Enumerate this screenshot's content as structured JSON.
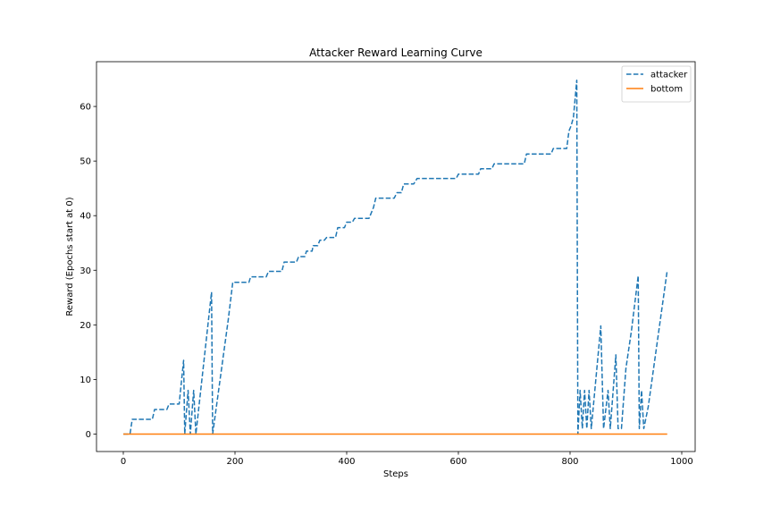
{
  "chart_data": {
    "type": "line",
    "title": "Attacker Reward Learning Curve",
    "xlabel": "Steps",
    "ylabel": "Reward (Epochs start at 0)",
    "xlim": [
      -48,
      1024
    ],
    "ylim": [
      -3.2,
      68.2
    ],
    "xticks": [
      0,
      200,
      400,
      600,
      800,
      1000
    ],
    "yticks": [
      0,
      10,
      20,
      30,
      40,
      50,
      60
    ],
    "grid": false,
    "legend": "top-right",
    "series": [
      {
        "name": "attacker",
        "color": "#1f77b4",
        "style": "dashed",
        "points": [
          [
            0,
            0
          ],
          [
            12,
            0
          ],
          [
            16,
            2.7
          ],
          [
            52,
            2.7
          ],
          [
            56,
            4.5
          ],
          [
            78,
            4.5
          ],
          [
            82,
            5.5
          ],
          [
            100,
            5.5
          ],
          [
            108,
            13.5
          ],
          [
            110,
            0
          ],
          [
            116,
            8
          ],
          [
            120,
            0
          ],
          [
            126,
            8
          ],
          [
            130,
            0
          ],
          [
            158,
            26
          ],
          [
            160,
            0
          ],
          [
            188,
            21
          ],
          [
            196,
            27.8
          ],
          [
            225,
            27.8
          ],
          [
            228,
            28.8
          ],
          [
            256,
            28.8
          ],
          [
            260,
            29.8
          ],
          [
            284,
            29.8
          ],
          [
            288,
            31.5
          ],
          [
            310,
            31.5
          ],
          [
            314,
            32.5
          ],
          [
            325,
            32.5
          ],
          [
            328,
            33.5
          ],
          [
            338,
            33.5
          ],
          [
            340,
            34.5
          ],
          [
            348,
            34.5
          ],
          [
            352,
            35.5
          ],
          [
            360,
            35.5
          ],
          [
            364,
            36
          ],
          [
            380,
            36
          ],
          [
            384,
            37.8
          ],
          [
            396,
            37.8
          ],
          [
            400,
            38.8
          ],
          [
            410,
            38.8
          ],
          [
            414,
            39.5
          ],
          [
            440,
            39.5
          ],
          [
            448,
            41.5
          ],
          [
            452,
            43.2
          ],
          [
            485,
            43.2
          ],
          [
            490,
            44.2
          ],
          [
            498,
            44.2
          ],
          [
            502,
            45.8
          ],
          [
            520,
            45.8
          ],
          [
            526,
            46.8
          ],
          [
            596,
            46.8
          ],
          [
            600,
            47.6
          ],
          [
            636,
            47.6
          ],
          [
            640,
            48.6
          ],
          [
            660,
            48.6
          ],
          [
            664,
            49.5
          ],
          [
            718,
            49.5
          ],
          [
            722,
            51.3
          ],
          [
            766,
            51.3
          ],
          [
            770,
            52.3
          ],
          [
            794,
            52.3
          ],
          [
            798,
            55.5
          ],
          [
            802,
            56.5
          ],
          [
            806,
            58
          ],
          [
            812,
            64.8
          ],
          [
            814,
            0
          ],
          [
            818,
            8
          ],
          [
            822,
            1
          ],
          [
            826,
            8
          ],
          [
            830,
            1
          ],
          [
            834,
            8
          ],
          [
            838,
            1
          ],
          [
            855,
            19.8
          ],
          [
            860,
            1
          ],
          [
            868,
            8
          ],
          [
            872,
            1
          ],
          [
            882,
            14.5
          ],
          [
            886,
            1
          ],
          [
            892,
            1
          ],
          [
            900,
            12
          ],
          [
            910,
            19
          ],
          [
            922,
            29
          ],
          [
            924,
            1
          ],
          [
            928,
            8
          ],
          [
            932,
            1
          ],
          [
            940,
            5
          ],
          [
            974,
            30
          ]
        ]
      },
      {
        "name": "bottom",
        "color": "#ff7f0e",
        "style": "solid",
        "points": [
          [
            0,
            0
          ],
          [
            974,
            0
          ]
        ]
      }
    ]
  }
}
